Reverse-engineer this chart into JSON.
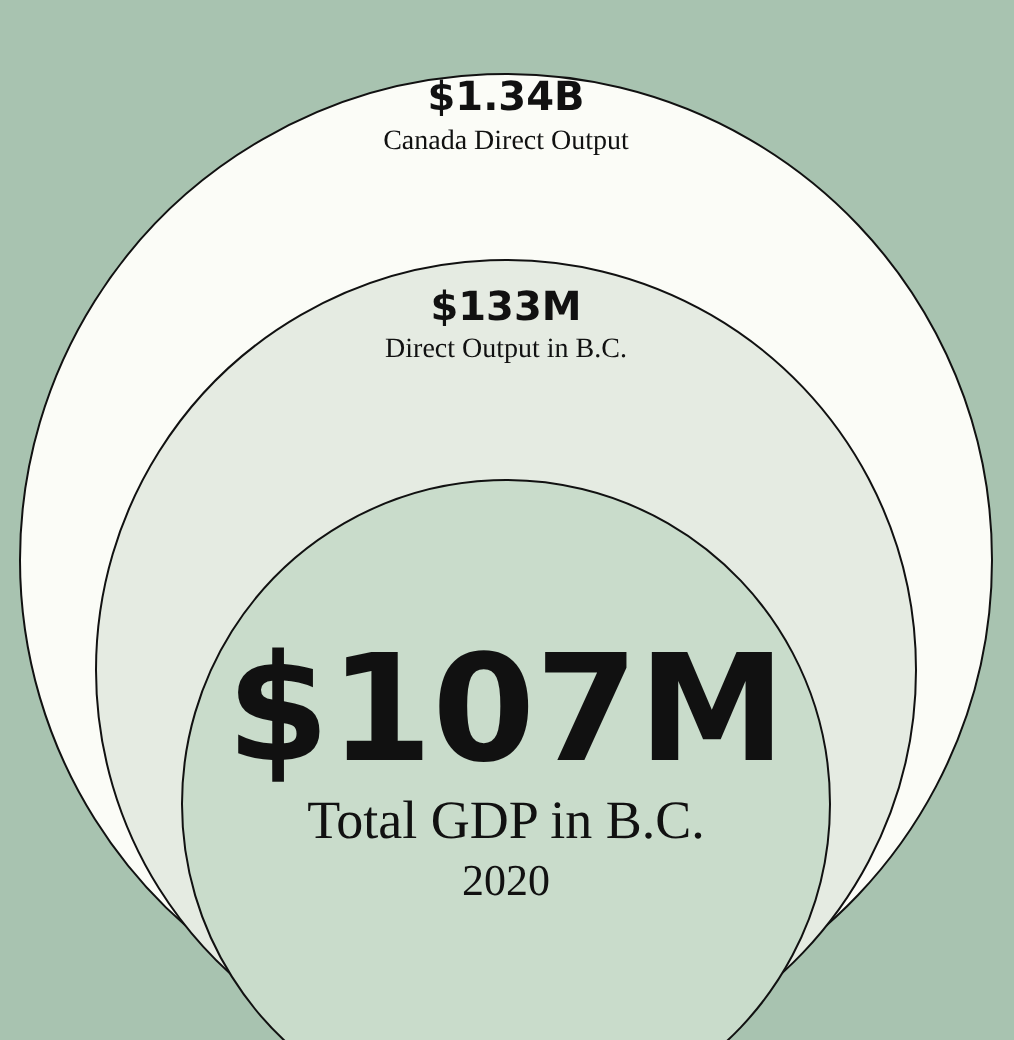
{
  "chart_data": {
    "type": "other",
    "categories": [
      "Canada Direct Output",
      "Direct Output in B.C.",
      "Total GDP in B.C."
    ],
    "values": [
      1340000000,
      133000000,
      107000000
    ],
    "value_labels": [
      "$1.34B",
      "$133M",
      "$107M"
    ],
    "colors": [
      "#fbfcf7",
      "#e5ebe2",
      "#c9dccb"
    ],
    "annotations": [
      "2020"
    ]
  }
}
